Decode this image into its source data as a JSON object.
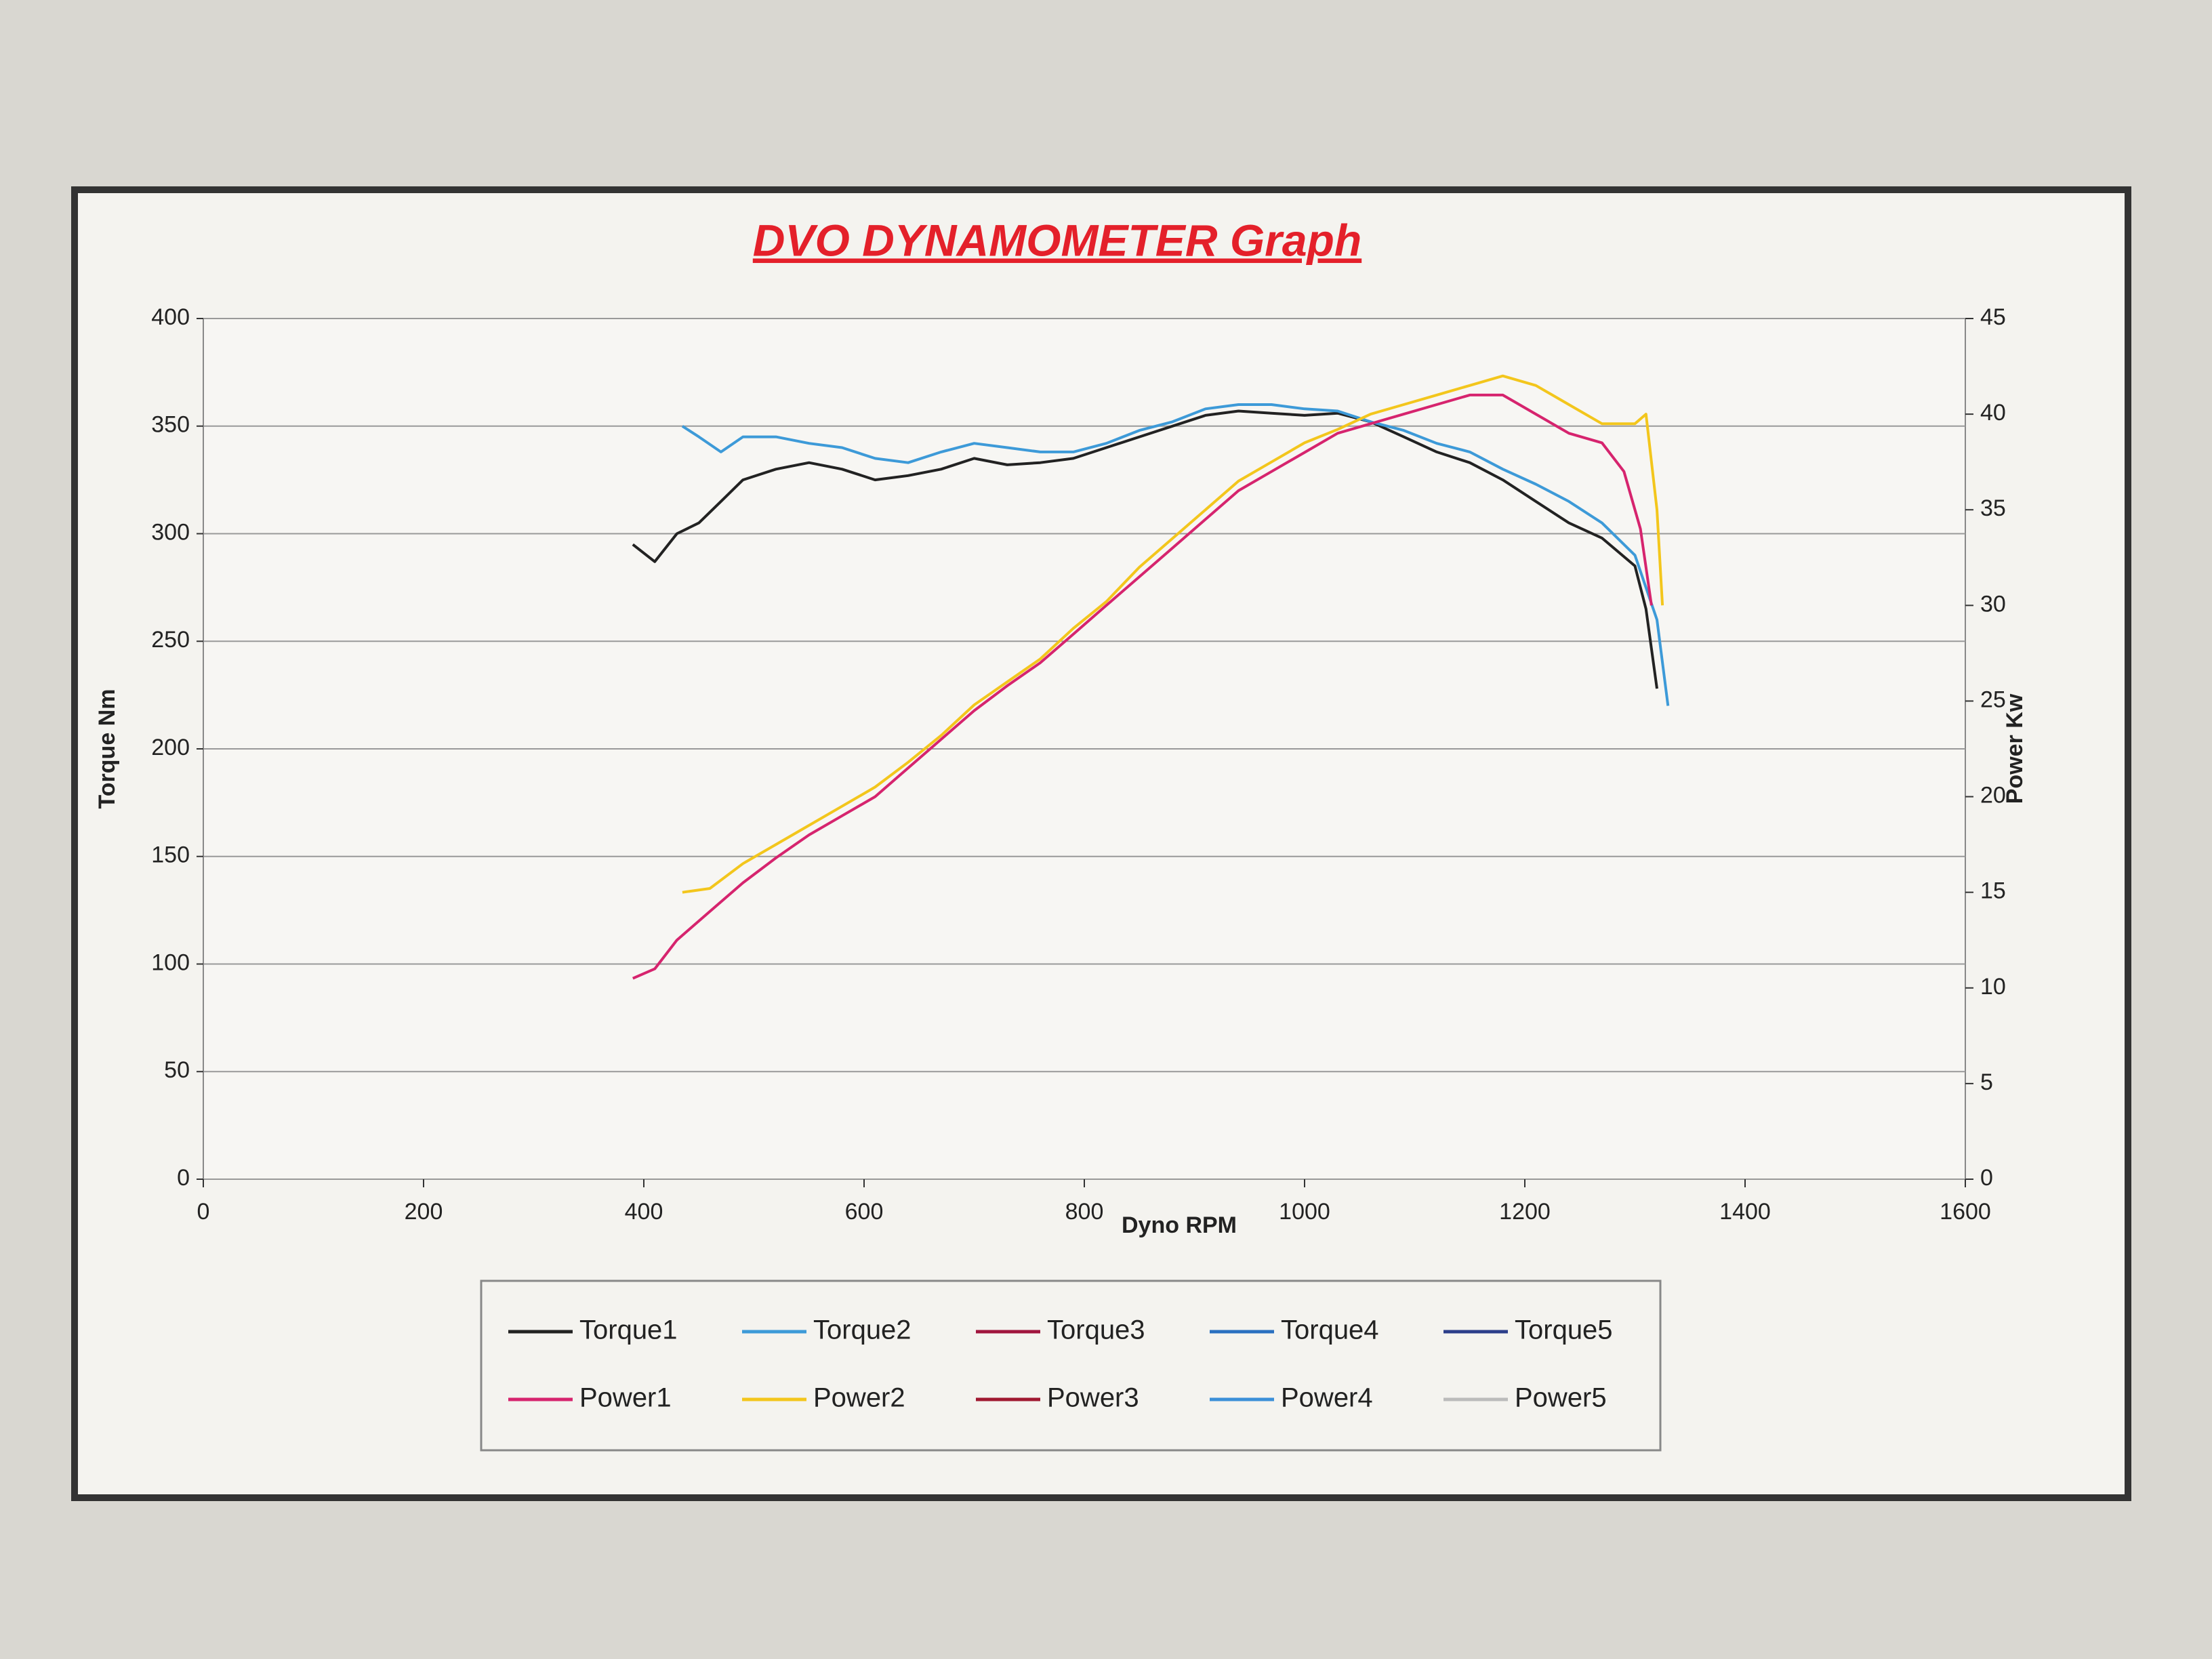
{
  "chart_data": {
    "type": "line",
    "title": "DVO DYNAMOMETER Graph",
    "x_label": "Dyno RPM",
    "y_label": "Torque Nm",
    "y2_label": "Power Kw",
    "xlim": [
      0,
      1600
    ],
    "xticks": [
      0,
      200,
      400,
      600,
      800,
      1000,
      1200,
      1400,
      1600
    ],
    "ylim": [
      0,
      400
    ],
    "yticks": [
      0,
      50,
      100,
      150,
      200,
      250,
      300,
      350,
      400
    ],
    "y2lim": [
      0,
      45
    ],
    "y2ticks": [
      0,
      5,
      10,
      15,
      20,
      25,
      30,
      35,
      40,
      45
    ],
    "grid": true,
    "legend": "bottom",
    "series": [
      {
        "name": "Torque1",
        "color": "#222222",
        "x": [
          390,
          410,
          430,
          450,
          470,
          490,
          520,
          550,
          580,
          610,
          640,
          670,
          700,
          730,
          760,
          790,
          820,
          850,
          880,
          910,
          940,
          970,
          1000,
          1030,
          1060,
          1090,
          1120,
          1150,
          1180,
          1210,
          1240,
          1270,
          1300,
          1310,
          1320
        ],
        "values": [
          295,
          287,
          300,
          305,
          315,
          325,
          330,
          333,
          330,
          325,
          327,
          330,
          335,
          332,
          333,
          335,
          340,
          345,
          350,
          355,
          357,
          356,
          355,
          356,
          352,
          345,
          338,
          333,
          325,
          315,
          305,
          298,
          285,
          265,
          228
        ]
      },
      {
        "name": "Torque2",
        "color": "#3d9ad8",
        "x": [
          435,
          450,
          470,
          490,
          520,
          550,
          580,
          610,
          640,
          670,
          700,
          730,
          760,
          790,
          820,
          850,
          880,
          910,
          940,
          970,
          1000,
          1030,
          1060,
          1090,
          1120,
          1150,
          1180,
          1210,
          1240,
          1270,
          1300,
          1320,
          1330
        ],
        "values": [
          350,
          345,
          338,
          345,
          345,
          342,
          340,
          335,
          333,
          338,
          342,
          340,
          338,
          338,
          342,
          348,
          352,
          358,
          360,
          360,
          358,
          357,
          352,
          348,
          342,
          338,
          330,
          323,
          315,
          305,
          290,
          260,
          220
        ]
      },
      {
        "name": "Torque3",
        "color": "#a0153e",
        "x": [],
        "values": []
      },
      {
        "name": "Torque4",
        "color": "#2a70c0",
        "x": [],
        "values": []
      },
      {
        "name": "Torque5",
        "color": "#2c3e8a",
        "x": [],
        "values": []
      },
      {
        "name": "Power1",
        "color": "#d6246e",
        "axis": "y2",
        "x": [
          390,
          410,
          430,
          460,
          490,
          520,
          550,
          580,
          610,
          640,
          670,
          700,
          730,
          760,
          790,
          820,
          850,
          880,
          910,
          940,
          970,
          1000,
          1030,
          1060,
          1090,
          1120,
          1150,
          1180,
          1210,
          1240,
          1270,
          1290,
          1305,
          1315
        ],
        "values": [
          10.5,
          11,
          12.5,
          14,
          15.5,
          16.8,
          18,
          19,
          20,
          21.5,
          23,
          24.5,
          25.8,
          27,
          28.5,
          30,
          31.5,
          33,
          34.5,
          36,
          37,
          38,
          39,
          39.5,
          40,
          40.5,
          41,
          41,
          40,
          39,
          38.5,
          37,
          34,
          30
        ]
      },
      {
        "name": "Power2",
        "color": "#f3c61c",
        "axis": "y2",
        "x": [
          435,
          460,
          490,
          520,
          550,
          580,
          610,
          640,
          670,
          700,
          730,
          760,
          790,
          820,
          850,
          880,
          910,
          940,
          970,
          1000,
          1030,
          1060,
          1090,
          1120,
          1150,
          1180,
          1210,
          1240,
          1270,
          1300,
          1310,
          1320,
          1325
        ],
        "values": [
          15,
          15.2,
          16.5,
          17.5,
          18.5,
          19.5,
          20.5,
          21.8,
          23.2,
          24.8,
          26,
          27.2,
          28.8,
          30.2,
          32,
          33.5,
          35,
          36.5,
          37.5,
          38.5,
          39.2,
          40,
          40.5,
          41,
          41.5,
          42,
          41.5,
          40.5,
          39.5,
          39.5,
          40,
          35,
          30
        ]
      },
      {
        "name": "Power3",
        "color": "#a01830",
        "axis": "y2",
        "x": [],
        "values": []
      },
      {
        "name": "Power4",
        "color": "#3b8fd8",
        "axis": "y2",
        "x": [],
        "values": []
      },
      {
        "name": "Power5",
        "color": "#bbbbbb",
        "axis": "y2",
        "x": [],
        "values": []
      }
    ]
  }
}
